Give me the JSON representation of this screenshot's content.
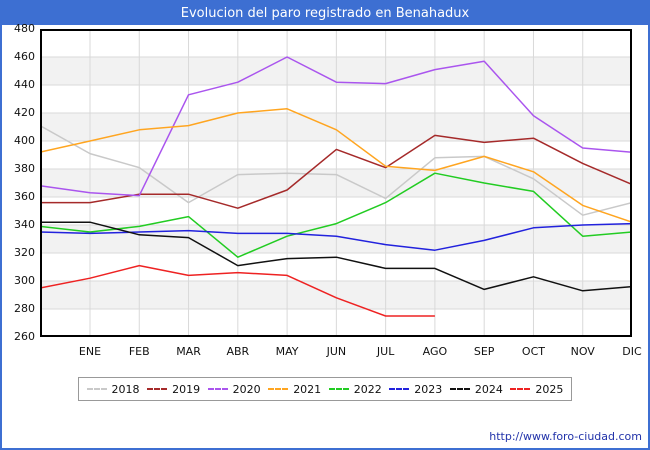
{
  "title_bar": {
    "title": "Evolucion del paro registrado en Benahadux"
  },
  "footer": {
    "link": "http://www.foro-ciudad.com"
  },
  "colors": {
    "frame_border": "#3d6fd2",
    "titlebar_bg": "#3d6fd2",
    "titlebar_text": "#ffffff",
    "grid": "#d9d9d9",
    "band": "#f2f2f2",
    "plot_border": "#000000",
    "axis_text": "#111111",
    "footer_text": "#2233aa"
  },
  "chart_data": {
    "type": "line",
    "title": "Evolucion del paro registrado en Benahadux",
    "categories": [
      "ENE",
      "FEB",
      "MAR",
      "ABR",
      "MAY",
      "JUN",
      "JUL",
      "AGO",
      "SEP",
      "OCT",
      "NOV",
      "DIC"
    ],
    "ylabel": "",
    "xlabel": "",
    "ylim": [
      260,
      480
    ],
    "ytick_step": 20,
    "yticks": [
      480,
      460,
      440,
      420,
      400,
      380,
      360,
      340,
      320,
      300,
      280,
      260
    ],
    "grid": true,
    "legend_position": "bottom",
    "series": [
      {
        "name": "2018",
        "color": "#c9c9c9",
        "start_value": 411,
        "values": [
          391,
          381,
          356,
          376,
          377,
          376,
          359,
          388,
          389,
          373,
          347,
          356
        ]
      },
      {
        "name": "2019",
        "color": "#a52a2a",
        "start_value": 356,
        "values": [
          356,
          362,
          362,
          352,
          365,
          394,
          381,
          404,
          399,
          402,
          384,
          369
        ]
      },
      {
        "name": "2020",
        "color": "#aa55ee",
        "start_value": 368,
        "values": [
          363,
          361,
          433,
          442,
          460,
          442,
          441,
          451,
          457,
          418,
          395,
          392
        ]
      },
      {
        "name": "2021",
        "color": "#ffa520",
        "start_value": 392,
        "values": [
          400,
          408,
          411,
          420,
          423,
          408,
          382,
          379,
          389,
          378,
          354,
          342
        ]
      },
      {
        "name": "2022",
        "color": "#22cc22",
        "start_value": 339,
        "values": [
          335,
          339,
          346,
          317,
          332,
          341,
          356,
          377,
          370,
          364,
          332,
          335
        ]
      },
      {
        "name": "2023",
        "color": "#2222dd",
        "start_value": 335,
        "values": [
          334,
          335,
          336,
          334,
          334,
          332,
          326,
          322,
          329,
          338,
          340,
          341
        ]
      },
      {
        "name": "2024",
        "color": "#111111",
        "start_value": 342,
        "values": [
          342,
          333,
          331,
          311,
          316,
          317,
          309,
          309,
          294,
          303,
          293,
          296
        ]
      },
      {
        "name": "2025",
        "color": "#ee2222",
        "start_value": 295,
        "values": [
          302,
          311,
          304,
          306,
          304,
          288,
          275,
          275
        ]
      }
    ]
  }
}
